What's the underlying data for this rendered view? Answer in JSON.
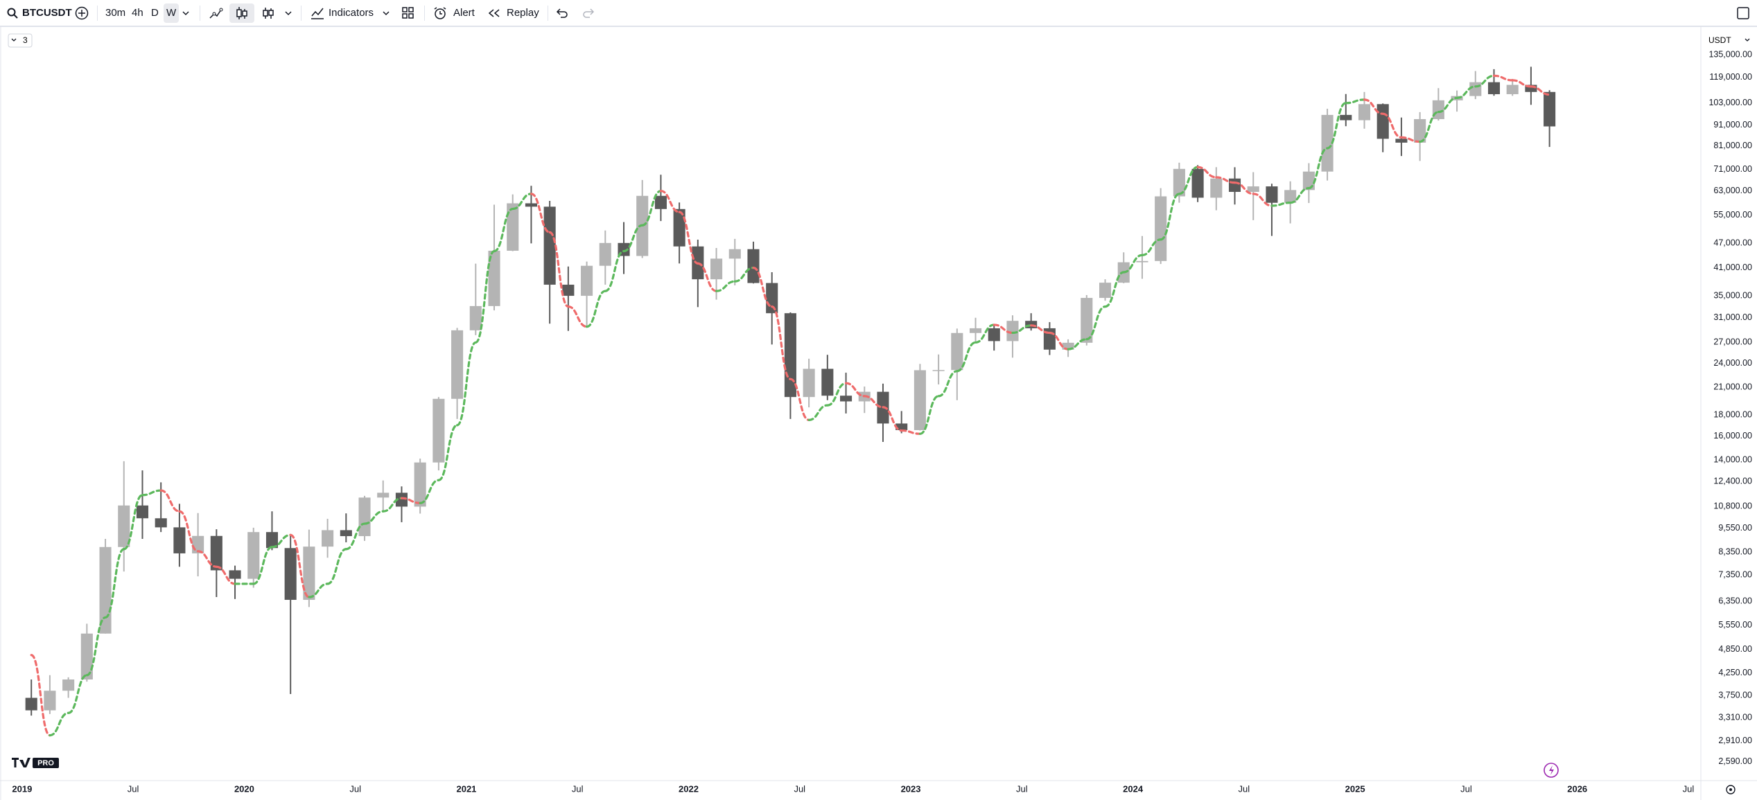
{
  "toolbar": {
    "symbol": "BTCUSDT",
    "intervals": [
      "30m",
      "4h",
      "D",
      "W"
    ],
    "indicators": "Indicators",
    "alert": "Alert",
    "replay": "Replay"
  },
  "legend_badge": "3",
  "logo_badge": "PRO",
  "chart_data": {
    "type": "candlestick",
    "currency": "USDT",
    "log_scale": true,
    "grid": false,
    "up_color": "#b4b4b4",
    "down_color": "#5a5a5a",
    "x": [
      "2019-01",
      "2019-02",
      "2019-03",
      "2019-04",
      "2019-05",
      "2019-06",
      "2019-07",
      "2019-08",
      "2019-09",
      "2019-10",
      "2019-11",
      "2019-12",
      "2020-01",
      "2020-02",
      "2020-03",
      "2020-04",
      "2020-05",
      "2020-06",
      "2020-07",
      "2020-08",
      "2020-09",
      "2020-10",
      "2020-11",
      "2020-12",
      "2021-01",
      "2021-02",
      "2021-03",
      "2021-04",
      "2021-05",
      "2021-06",
      "2021-07",
      "2021-08",
      "2021-09",
      "2021-10",
      "2021-11",
      "2021-12",
      "2022-01",
      "2022-02",
      "2022-03",
      "2022-04",
      "2022-05",
      "2022-06",
      "2022-07",
      "2022-08",
      "2022-09",
      "2022-10",
      "2022-11",
      "2022-12",
      "2023-01",
      "2023-02",
      "2023-03",
      "2023-04",
      "2023-05",
      "2023-06",
      "2023-07",
      "2023-08",
      "2023-09",
      "2023-10",
      "2023-11",
      "2023-12",
      "2024-01",
      "2024-02",
      "2024-03",
      "2024-04",
      "2024-05",
      "2024-06",
      "2024-07",
      "2024-08",
      "2024-09",
      "2024-10",
      "2024-11",
      "2024-12",
      "2025-01",
      "2025-02",
      "2025-03",
      "2025-04",
      "2025-05",
      "2025-06",
      "2025-07",
      "2025-08",
      "2025-09",
      "2025-10",
      "2025-11"
    ],
    "open": [
      3700,
      3450,
      3850,
      4100,
      5300,
      8600,
      10850,
      10100,
      9600,
      8300,
      9150,
      7550,
      7200,
      9350,
      8550,
      6400,
      8620,
      9450,
      9140,
      11340,
      11650,
      10780,
      13800,
      19700,
      28900,
      33100,
      45100,
      58800,
      57700,
      37300,
      35050,
      41460,
      47100,
      43800,
      61300,
      56950,
      46200,
      38450,
      43150,
      45500,
      37650,
      31800,
      19900,
      23300,
      20050,
      19420,
      20490,
      17160,
      16540,
      23120,
      23140,
      28470,
      29230,
      27210,
      30470,
      29230,
      25940,
      26960,
      34640,
      37720,
      42280,
      42580,
      61130,
      71280,
      60670,
      67540,
      62680,
      64630,
      58970,
      63330,
      70220,
      96400,
      93580,
      102400,
      84350,
      82550,
      94170,
      104600,
      107150,
      115750,
      108250,
      114050,
      109600
    ],
    "high": [
      4100,
      4200,
      4150,
      5600,
      9000,
      13900,
      13200,
      12350,
      10950,
      10400,
      9500,
      7750,
      9580,
      10500,
      9190,
      9480,
      10070,
      10380,
      11450,
      12480,
      12070,
      14100,
      19900,
      29300,
      41950,
      58350,
      61800,
      64850,
      59600,
      41300,
      42450,
      50500,
      52950,
      67000,
      69000,
      59050,
      47990,
      45800,
      48200,
      47450,
      40000,
      31950,
      24650,
      25200,
      22800,
      21100,
      21450,
      18400,
      23950,
      25250,
      29180,
      31000,
      29820,
      31430,
      31800,
      30250,
      27480,
      35200,
      38450,
      44700,
      48970,
      64000,
      73800,
      72800,
      71980,
      71950,
      70000,
      65600,
      66500,
      73600,
      99800,
      108350,
      109600,
      102750,
      95000,
      97900,
      112000,
      110500,
      123200,
      124500,
      117900,
      126200,
      110700
    ],
    "low": [
      3350,
      3380,
      3700,
      4050,
      5300,
      7500,
      9000,
      9350,
      7700,
      7300,
      6500,
      6430,
      6850,
      8450,
      3780,
      6150,
      8100,
      8830,
      8900,
      10520,
      9880,
      10370,
      13200,
      17600,
      28130,
      32300,
      45000,
      47000,
      30000,
      28800,
      29300,
      37300,
      39600,
      43300,
      53250,
      42000,
      32900,
      34300,
      37150,
      37550,
      26700,
      17600,
      18780,
      19550,
      18150,
      18200,
      15480,
      16250,
      16500,
      21350,
      19550,
      26940,
      25800,
      24800,
      28860,
      25170,
      24900,
      26550,
      34100,
      37600,
      38550,
      41880,
      59000,
      59200,
      56550,
      58400,
      53500,
      49000,
      52550,
      58900,
      66800,
      90500,
      89250,
      78250,
      76600,
      74500,
      93400,
      98200,
      105300,
      107300,
      107250,
      102000,
      80600
    ],
    "close": [
      3450,
      3850,
      4100,
      5300,
      8600,
      10850,
      10100,
      9600,
      8300,
      9150,
      7550,
      7200,
      9350,
      8550,
      6400,
      8620,
      9450,
      9140,
      11340,
      11650,
      10780,
      13800,
      19700,
      28900,
      33100,
      45100,
      58800,
      57700,
      37300,
      35050,
      41460,
      47100,
      43800,
      61300,
      56950,
      46200,
      38450,
      43150,
      45500,
      37650,
      31800,
      19900,
      23300,
      20050,
      19420,
      20490,
      17160,
      16540,
      23120,
      23140,
      28470,
      29230,
      27210,
      30470,
      29230,
      25940,
      26960,
      34640,
      37720,
      42280,
      42580,
      61130,
      71280,
      60670,
      67540,
      62680,
      64630,
      58970,
      63330,
      70220,
      96400,
      93580,
      102400,
      84350,
      82550,
      94170,
      104600,
      107150,
      115750,
      108250,
      114050,
      109600,
      90400
    ],
    "trend": {
      "up_color": "#5cb85c",
      "down_color": "#ef6b6b",
      "values": [
        4700,
        3000,
        3400,
        4200,
        5800,
        8500,
        11500,
        11800,
        10500,
        8400,
        7700,
        7000,
        7000,
        8600,
        9200,
        6500,
        7000,
        8500,
        9800,
        10500,
        11300,
        11000,
        12500,
        17000,
        27000,
        45000,
        57000,
        62000,
        50000,
        33000,
        29500,
        36000,
        45000,
        52000,
        63000,
        56000,
        42000,
        36000,
        38000,
        41000,
        33000,
        22000,
        17500,
        19000,
        21500,
        20000,
        18800,
        16500,
        16200,
        20000,
        23000,
        27000,
        29800,
        28500,
        29700,
        28500,
        26000,
        27500,
        33000,
        40000,
        44000,
        48000,
        62000,
        72000,
        68000,
        66000,
        62000,
        58000,
        59000,
        64000,
        80000,
        103000,
        105000,
        97000,
        85000,
        83000,
        98000,
        106000,
        113000,
        120000,
        117000,
        113000,
        108000
      ]
    },
    "xlim": [
      2018.91,
      2026.55
    ],
    "xticks": [
      2019,
      {
        "value": 2019.5,
        "label": "Jul"
      },
      2020,
      {
        "value": 2020.5,
        "label": "Jul"
      },
      2021,
      {
        "value": 2021.5,
        "label": "Jul"
      },
      2022,
      {
        "value": 2022.5,
        "label": "Jul"
      },
      2023,
      {
        "value": 2023.5,
        "label": "Jul"
      },
      2024,
      {
        "value": 2024.5,
        "label": "Jul"
      },
      2025,
      {
        "value": 2025.5,
        "label": "Jul"
      },
      2026,
      {
        "value": 2026.5,
        "label": "Jul"
      }
    ],
    "ylim": [
      2356,
      157000
    ],
    "yticks": [
      {
        "value": 135000,
        "label": "135,000.00"
      },
      {
        "value": 119000,
        "label": "119,000.00"
      },
      {
        "value": 103000,
        "label": "103,000.00"
      },
      {
        "value": 91000,
        "label": "91,000.00"
      },
      {
        "value": 81000,
        "label": "81,000.00"
      },
      {
        "value": 71000,
        "label": "71,000.00"
      },
      {
        "value": 63000,
        "label": "63,000.00"
      },
      {
        "value": 55000,
        "label": "55,000.00"
      },
      {
        "value": 47000,
        "label": "47,000.00"
      },
      {
        "value": 41000,
        "label": "41,000.00"
      },
      {
        "value": 35000,
        "label": "35,000.00"
      },
      {
        "value": 31000,
        "label": "31,000.00"
      },
      {
        "value": 27000,
        "label": "27,000.00"
      },
      {
        "value": 24000,
        "label": "24,000.00"
      },
      {
        "value": 21000,
        "label": "21,000.00"
      },
      {
        "value": 18000,
        "label": "18,000.00"
      },
      {
        "value": 16000,
        "label": "16,000.00"
      },
      {
        "value": 14000,
        "label": "14,000.00"
      },
      {
        "value": 12400,
        "label": "12,400.00"
      },
      {
        "value": 10800,
        "label": "10,800.00"
      },
      {
        "value": 9550,
        "label": "9,550.00"
      },
      {
        "value": 8350,
        "label": "8,350.00"
      },
      {
        "value": 7350,
        "label": "7,350.00"
      },
      {
        "value": 6350,
        "label": "6,350.00"
      },
      {
        "value": 5550,
        "label": "5,550.00"
      },
      {
        "value": 4850,
        "label": "4,850.00"
      },
      {
        "value": 4250,
        "label": "4,250.00"
      },
      {
        "value": 3750,
        "label": "3,750.00"
      },
      {
        "value": 3310,
        "label": "3,310.00"
      },
      {
        "value": 2910,
        "label": "2,910.00"
      },
      {
        "value": 2590,
        "label": "2,590.00"
      }
    ]
  }
}
